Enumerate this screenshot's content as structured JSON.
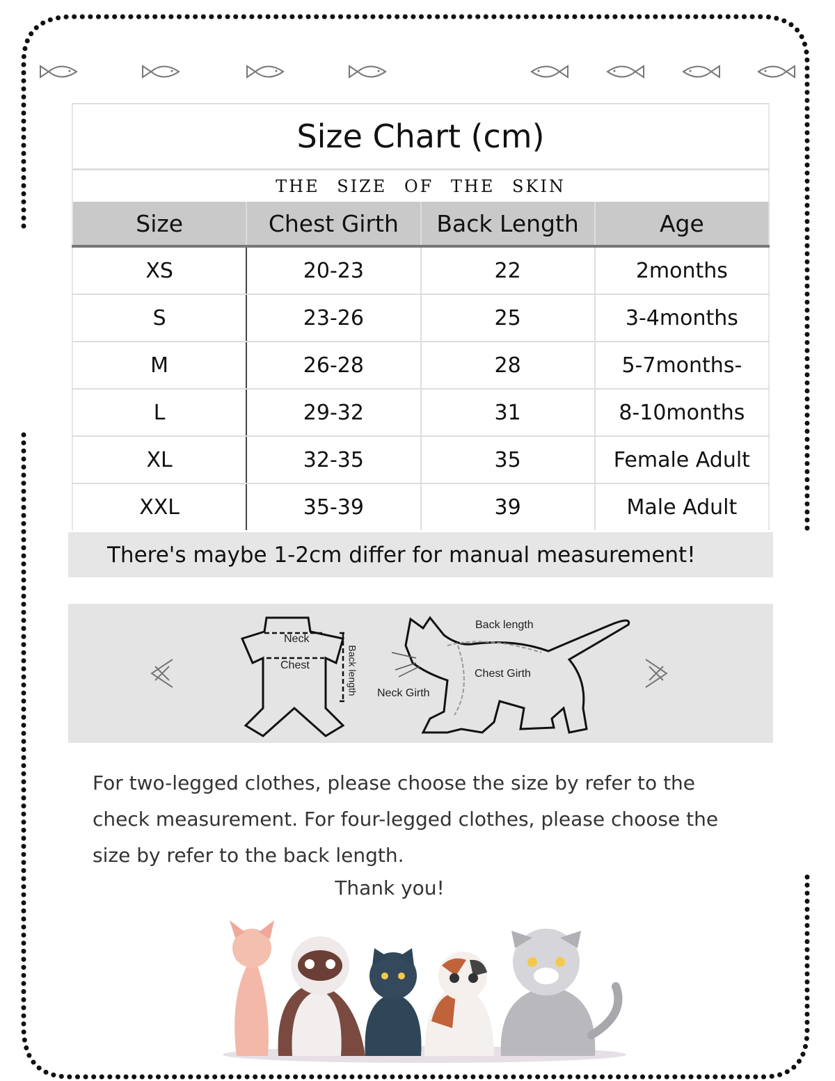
{
  "title": "Size Chart (cm)",
  "subtitle": "THE SIZE OF THE SKIN",
  "table": {
    "headers": [
      "Size",
      "Chest Girth",
      "Back Length",
      "Age"
    ],
    "rows": [
      [
        "XS",
        "20-23",
        "22",
        "2months"
      ],
      [
        "S",
        "23-26",
        "25",
        "3-4months"
      ],
      [
        "M",
        "26-28",
        "28",
        "5-7months-"
      ],
      [
        "L",
        "29-32",
        "31",
        "8-10months"
      ],
      [
        "XL",
        "32-35",
        "35",
        "Female Adult"
      ],
      [
        "XXL",
        "35-39",
        "39",
        "Male Adult"
      ]
    ]
  },
  "note": "There's maybe 1-2cm differ for manual measurement!",
  "diagram": {
    "neck": "Neck",
    "chest": "Chest",
    "back_length_vertical": "Back length",
    "back_length": "Back length",
    "chest_girth": "Chest Girth",
    "neck_girth": "Neck Girth"
  },
  "instructions": "For two-legged clothes, please choose the size by refer to the check measurement. For four-legged clothes, please choose the size by refer to the back length.",
  "thanks": "Thank you!",
  "colors": {
    "header_bg": "#c9c9c9",
    "note_bg": "#e6e6e6",
    "diagram_bg": "#e4e4e4"
  }
}
